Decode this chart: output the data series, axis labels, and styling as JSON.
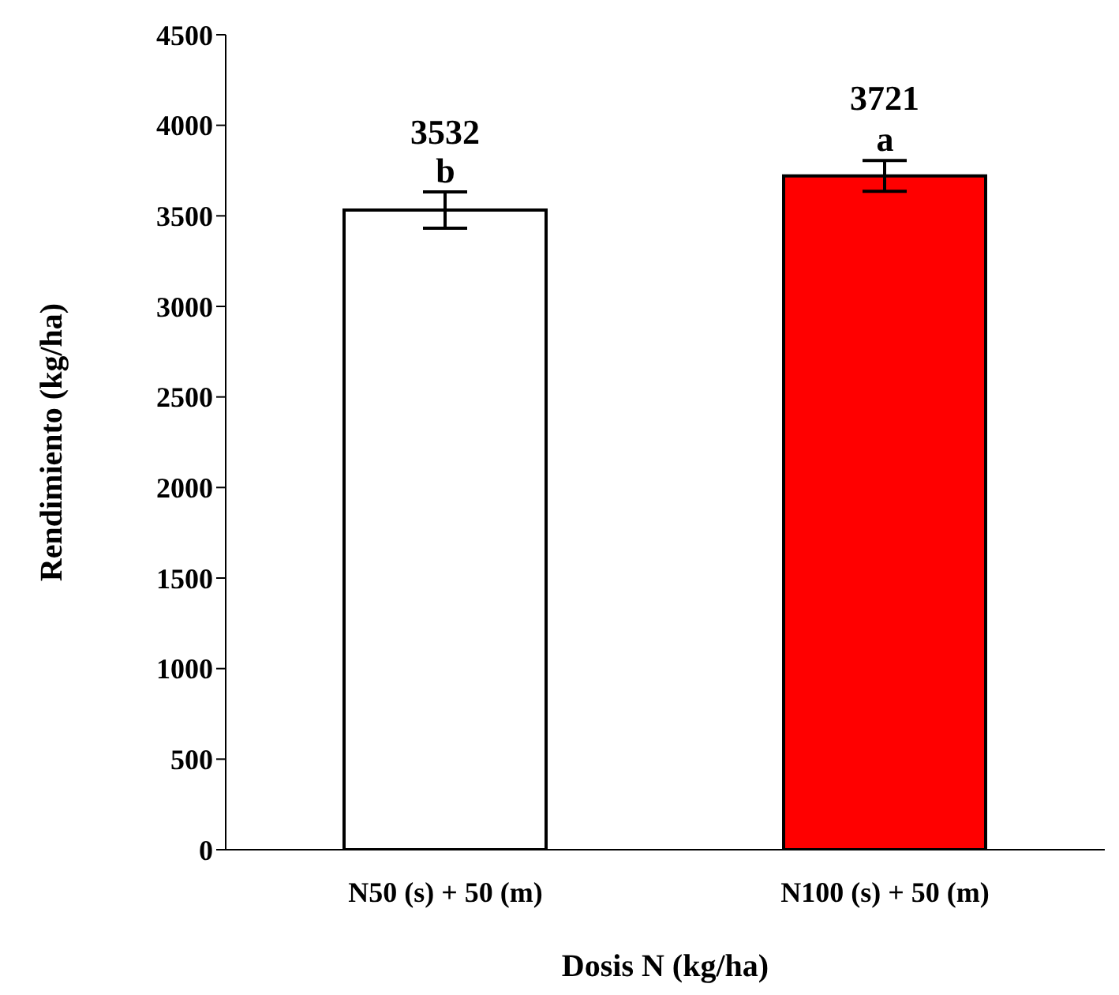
{
  "chart_data": {
    "type": "bar",
    "xlabel": "Dosis N (kg/ha)",
    "ylabel": "Rendimiento (kg/ha)",
    "categories": [
      "N50 (s) + 50 (m)",
      "N100 (s) + 50 (m)"
    ],
    "values": [
      3532,
      3721
    ],
    "colors": [
      "#ffffff",
      "#ff0000"
    ],
    "errors": [
      100,
      85
    ],
    "data_labels": true,
    "annotations": [
      {
        "text": "b",
        "x": "N50 (s) + 50 (m)",
        "y": 3632
      },
      {
        "text": "a",
        "x": "N100 (s) + 50 (m)",
        "y": 3806
      }
    ],
    "ylim": [
      0,
      4500
    ],
    "yticks": [
      0,
      500,
      1000,
      1500,
      2000,
      2500,
      3000,
      3500,
      4000,
      4500
    ],
    "grid": false,
    "legend": false
  }
}
